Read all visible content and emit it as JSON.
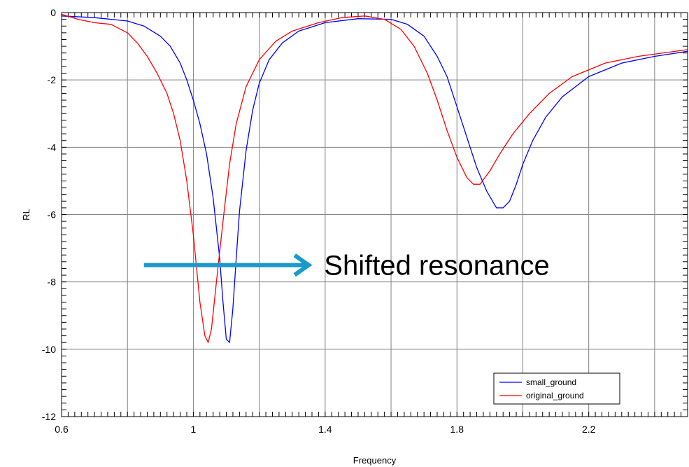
{
  "chart_data": {
    "type": "line",
    "title": "",
    "xlabel": "Frequency",
    "ylabel": "RL",
    "xlim": [
      0.6,
      2.5
    ],
    "ylim": [
      -12,
      0
    ],
    "xticks": [
      0.6,
      1,
      1.4,
      1.8,
      2.2
    ],
    "xtick_labels": [
      "0.6",
      "1",
      "1.4",
      "1.8",
      "2.2"
    ],
    "yticks": [
      0,
      -2,
      -4,
      -6,
      -8,
      -10,
      -12
    ],
    "ytick_labels": [
      "0",
      "-2",
      "-4",
      "-6",
      "-8",
      "-10",
      "-12"
    ],
    "grid": true,
    "legend_position": "bottom-right",
    "series": [
      {
        "name": "small_ground",
        "color": "#0000ff",
        "points": [
          [
            0.6,
            -0.1
          ],
          [
            0.7,
            -0.15
          ],
          [
            0.8,
            -0.25
          ],
          [
            0.85,
            -0.4
          ],
          [
            0.9,
            -0.7
          ],
          [
            0.93,
            -1.0
          ],
          [
            0.96,
            -1.5
          ],
          [
            0.98,
            -2.0
          ],
          [
            1.0,
            -2.6
          ],
          [
            1.02,
            -3.3
          ],
          [
            1.04,
            -4.2
          ],
          [
            1.06,
            -5.5
          ],
          [
            1.08,
            -7.3
          ],
          [
            1.09,
            -8.6
          ],
          [
            1.1,
            -9.7
          ],
          [
            1.11,
            -9.8
          ],
          [
            1.12,
            -8.8
          ],
          [
            1.13,
            -7.3
          ],
          [
            1.14,
            -5.9
          ],
          [
            1.16,
            -4.1
          ],
          [
            1.18,
            -2.9
          ],
          [
            1.2,
            -2.1
          ],
          [
            1.23,
            -1.4
          ],
          [
            1.27,
            -0.9
          ],
          [
            1.32,
            -0.55
          ],
          [
            1.4,
            -0.3
          ],
          [
            1.5,
            -0.18
          ],
          [
            1.6,
            -0.2
          ],
          [
            1.65,
            -0.35
          ],
          [
            1.7,
            -0.7
          ],
          [
            1.74,
            -1.3
          ],
          [
            1.77,
            -1.9
          ],
          [
            1.8,
            -2.8
          ],
          [
            1.83,
            -3.7
          ],
          [
            1.86,
            -4.6
          ],
          [
            1.89,
            -5.3
          ],
          [
            1.92,
            -5.8
          ],
          [
            1.94,
            -5.8
          ],
          [
            1.96,
            -5.6
          ],
          [
            1.98,
            -5.1
          ],
          [
            2.0,
            -4.5
          ],
          [
            2.03,
            -3.8
          ],
          [
            2.07,
            -3.1
          ],
          [
            2.12,
            -2.5
          ],
          [
            2.2,
            -1.9
          ],
          [
            2.3,
            -1.5
          ],
          [
            2.4,
            -1.3
          ],
          [
            2.5,
            -1.15
          ]
        ]
      },
      {
        "name": "original_ground",
        "color": "#ff0000",
        "points": [
          [
            0.6,
            -0.05
          ],
          [
            0.65,
            -0.2
          ],
          [
            0.7,
            -0.3
          ],
          [
            0.75,
            -0.35
          ],
          [
            0.8,
            -0.6
          ],
          [
            0.83,
            -0.9
          ],
          [
            0.86,
            -1.3
          ],
          [
            0.89,
            -1.8
          ],
          [
            0.92,
            -2.4
          ],
          [
            0.94,
            -3.0
          ],
          [
            0.96,
            -3.8
          ],
          [
            0.98,
            -5.0
          ],
          [
            1.0,
            -6.6
          ],
          [
            1.02,
            -8.6
          ],
          [
            1.035,
            -9.6
          ],
          [
            1.045,
            -9.8
          ],
          [
            1.055,
            -9.4
          ],
          [
            1.07,
            -8.0
          ],
          [
            1.09,
            -6.2
          ],
          [
            1.11,
            -4.5
          ],
          [
            1.13,
            -3.3
          ],
          [
            1.16,
            -2.2
          ],
          [
            1.2,
            -1.4
          ],
          [
            1.25,
            -0.85
          ],
          [
            1.3,
            -0.55
          ],
          [
            1.38,
            -0.3
          ],
          [
            1.45,
            -0.15
          ],
          [
            1.52,
            -0.1
          ],
          [
            1.58,
            -0.2
          ],
          [
            1.63,
            -0.5
          ],
          [
            1.67,
            -1.0
          ],
          [
            1.71,
            -1.8
          ],
          [
            1.74,
            -2.6
          ],
          [
            1.77,
            -3.5
          ],
          [
            1.8,
            -4.3
          ],
          [
            1.83,
            -4.9
          ],
          [
            1.85,
            -5.1
          ],
          [
            1.87,
            -5.1
          ],
          [
            1.9,
            -4.7
          ],
          [
            1.93,
            -4.2
          ],
          [
            1.97,
            -3.6
          ],
          [
            2.02,
            -3.0
          ],
          [
            2.08,
            -2.4
          ],
          [
            2.15,
            -1.9
          ],
          [
            2.25,
            -1.5
          ],
          [
            2.35,
            -1.3
          ],
          [
            2.5,
            -1.1
          ]
        ]
      }
    ],
    "annotation": {
      "text": "Shifted resonance",
      "arrow_color": "#1a9acb",
      "arrow_from": [
        0.85,
        -7.5
      ],
      "arrow_to": [
        1.35,
        -7.5
      ]
    }
  }
}
